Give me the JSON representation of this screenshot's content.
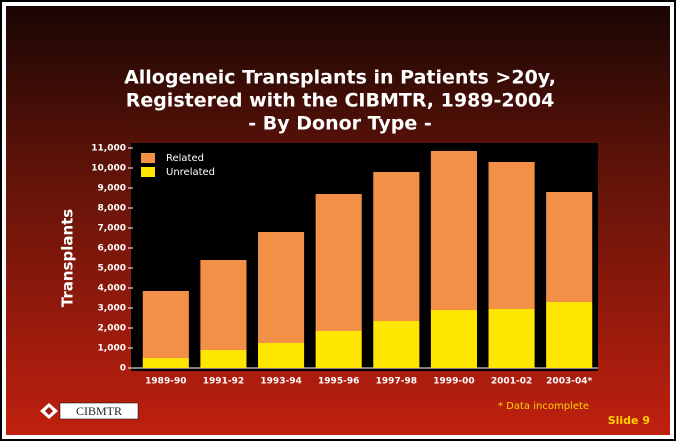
{
  "chart_data": {
    "type": "stacked-bar",
    "title": [
      "Allogeneic Transplants in Patients >20y,",
      "Registered with the CIBMTR, 1989-2004"
    ],
    "subtitle": "- By Donor Type -",
    "y_label": "Transplants",
    "categories": [
      "1989-90",
      "1991-92",
      "1993-94",
      "1995-96",
      "1997-98",
      "1999-00",
      "2001-02",
      "2003-04*"
    ],
    "series": [
      {
        "name": "Related",
        "color": "#f39048",
        "values": [
          3350,
          4500,
          5550,
          6850,
          7450,
          7950,
          7350,
          5500
        ]
      },
      {
        "name": "Unrelated",
        "color": "#ffe600",
        "values": [
          500,
          900,
          1250,
          1850,
          2350,
          2900,
          2950,
          3300
        ]
      }
    ],
    "ylim": [
      0,
      11000
    ],
    "yticks": [
      0,
      {
        "value": 1000,
        "label": "1,000"
      },
      {
        "value": 2000,
        "label": "2,000"
      },
      {
        "value": 3000,
        "label": "3,000"
      },
      {
        "value": 4000,
        "label": "4,000"
      },
      {
        "value": 5000,
        "label": "5,000"
      },
      {
        "value": 6000,
        "label": "6,000"
      },
      {
        "value": 7000,
        "label": "7,000"
      },
      {
        "value": 8000,
        "label": "8,000"
      },
      {
        "value": 9000,
        "label": "9,000"
      },
      {
        "value": 10000,
        "label": "10,000"
      },
      {
        "value": 11000,
        "label": "11,000"
      }
    ],
    "note": "* Data incomplete"
  },
  "slide": {
    "logo": "CIBMTR",
    "label": "Slide 9"
  }
}
